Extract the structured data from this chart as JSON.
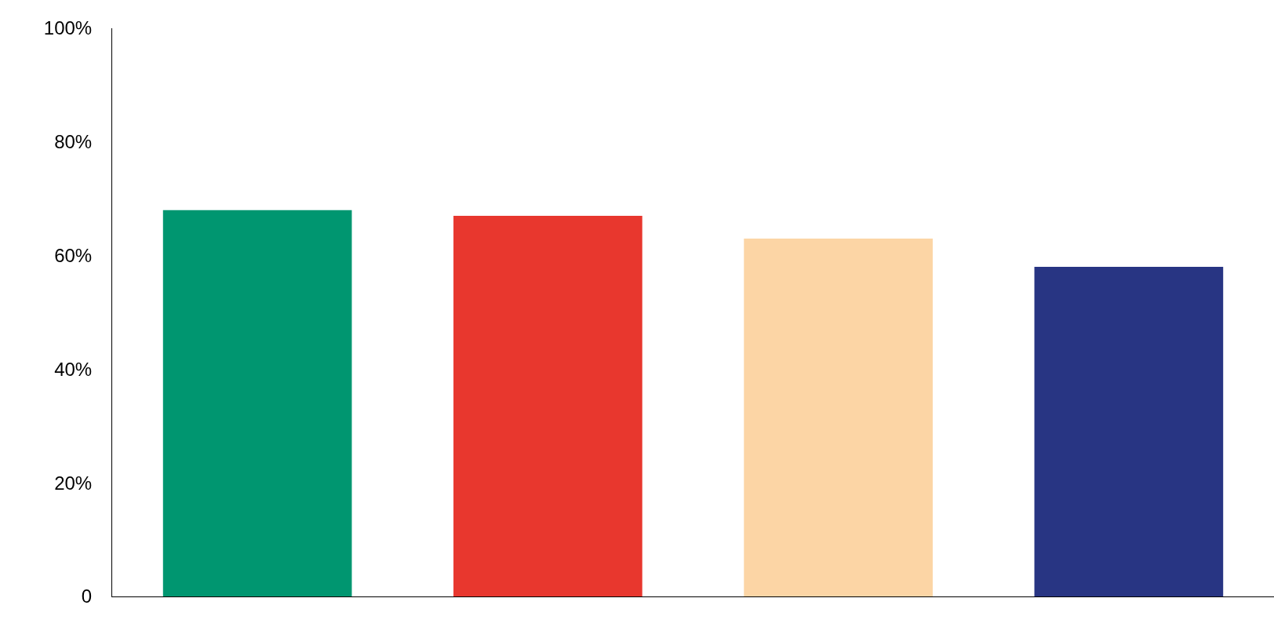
{
  "chart_data": {
    "type": "bar",
    "categories": [
      null,
      null,
      null,
      null
    ],
    "values": [
      68,
      67,
      63,
      58
    ],
    "colors": [
      "#009670",
      "#e8372e",
      "#fcd5a5",
      "#283583"
    ],
    "ylim": [
      0,
      100
    ],
    "yticks": [
      0,
      {
        "value": 20,
        "label": "20%"
      },
      {
        "value": 40,
        "label": "40%"
      },
      {
        "value": 60,
        "label": "60%"
      },
      {
        "value": 80,
        "label": "80%"
      },
      {
        "value": 100,
        "label": "100%"
      }
    ],
    "grid": false,
    "legend": false,
    "tick_labels": "y"
  }
}
